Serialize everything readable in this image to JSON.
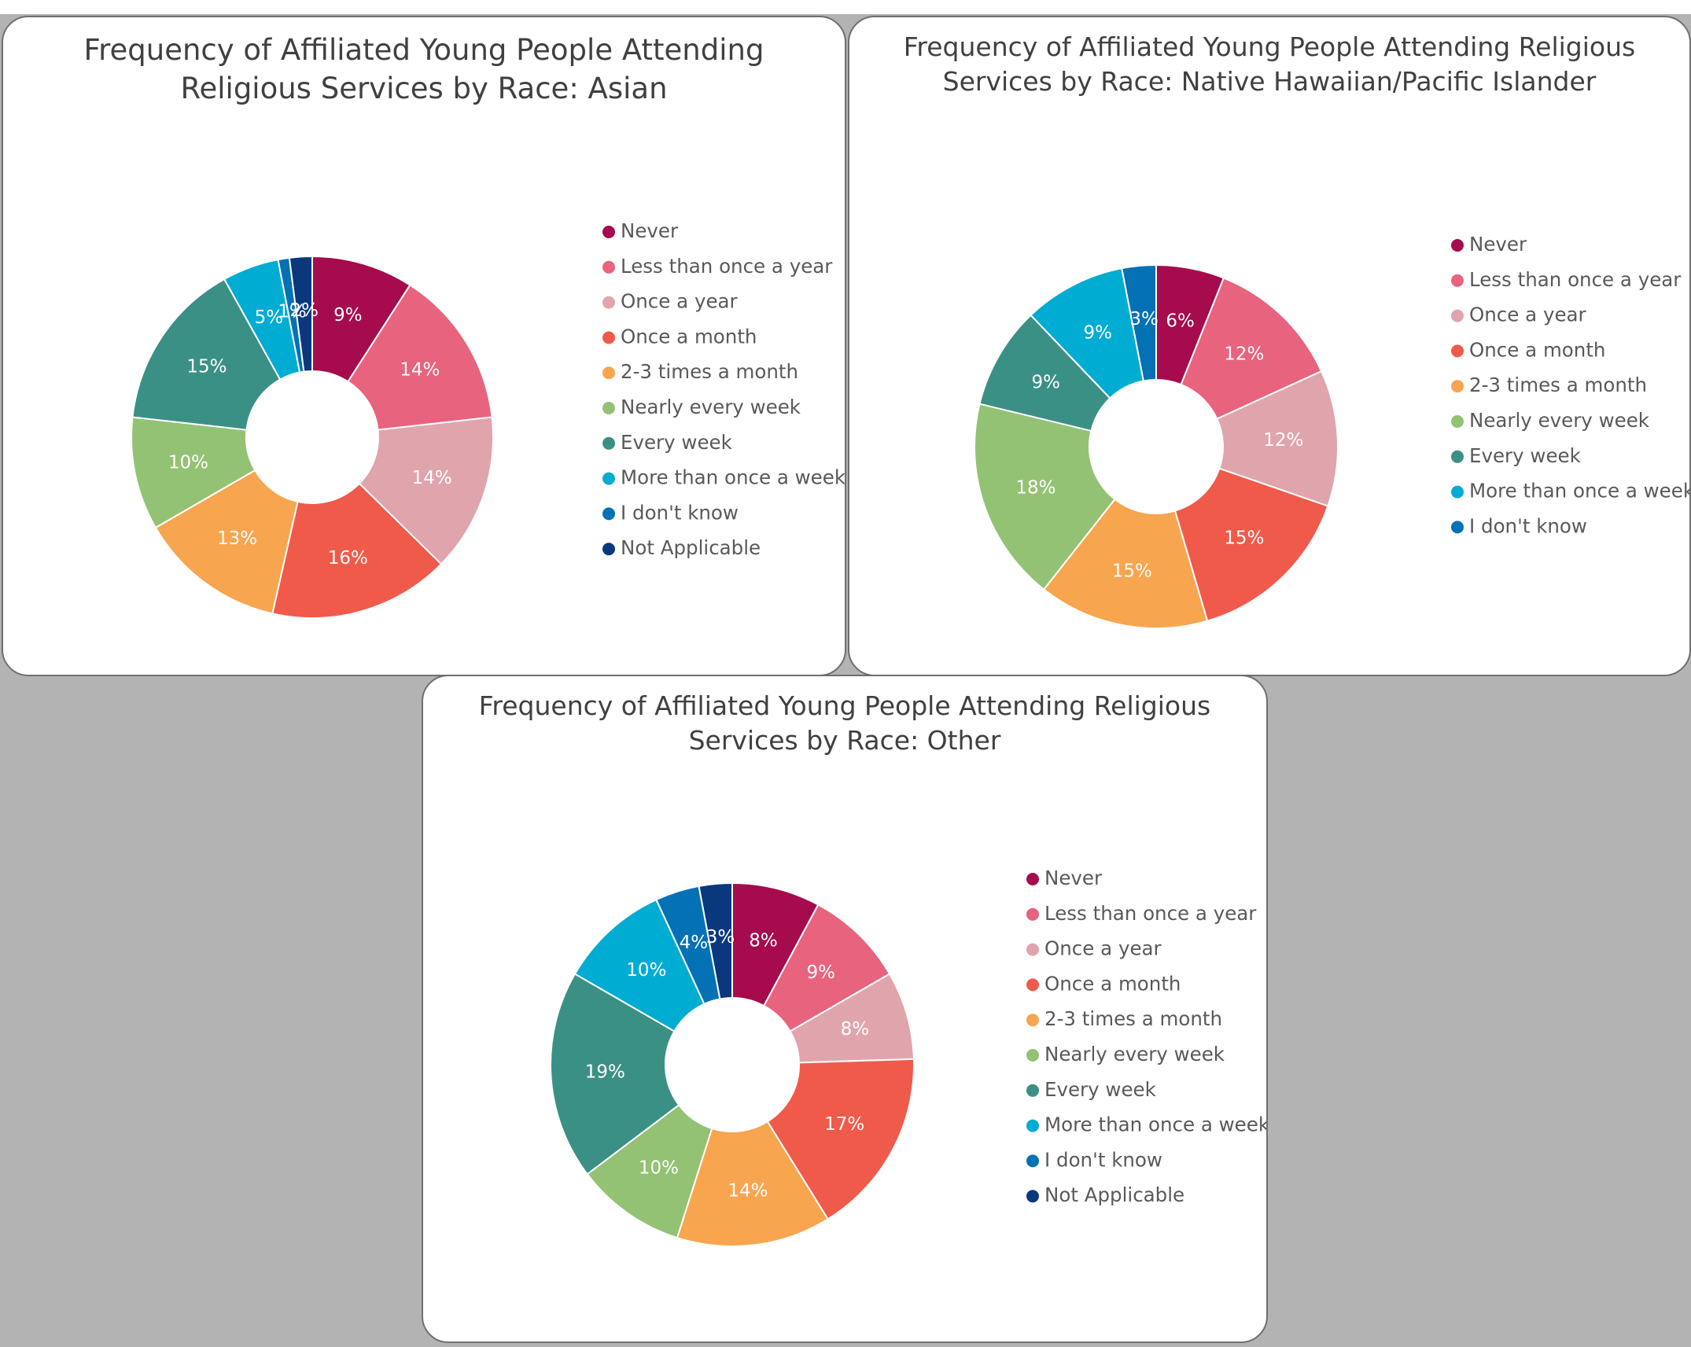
{
  "chart_data": [
    {
      "type": "pie",
      "title": "Frequency of Affiliated Young People Attending Religious Services by Race: Asian",
      "legend_position": "right",
      "categories": [
        "Never",
        "Less than once a year",
        "Once a year",
        "Once a month",
        "2-3 times a month",
        "Nearly every week",
        "Every week",
        "More than once a week",
        "I don't know",
        "Not Applicable"
      ],
      "values": [
        9,
        14,
        14,
        16,
        13,
        10,
        15,
        5,
        1,
        2
      ],
      "labels": [
        "9%",
        "14%",
        "14%",
        "16%",
        "13%",
        "10%",
        "15%",
        "5%",
        "1%",
        "2%"
      ],
      "colors": [
        "#a50b4d",
        "#e8637d",
        "#e0a4ad",
        "#f05a4a",
        "#f8a54f",
        "#94c274",
        "#3b9086",
        "#00acd2",
        "#0471b5",
        "#0a387d"
      ]
    },
    {
      "type": "pie",
      "title": "Frequency of Affiliated Young People Attending Religious Services by Race: Native Hawaiian/Pacific Islander",
      "legend_position": "right",
      "categories": [
        "Never",
        "Less than once a year",
        "Once a year",
        "Once a month",
        "2-3 times a month",
        "Nearly every week",
        "Every week",
        "More than once a week",
        "I don't know"
      ],
      "values": [
        6,
        12,
        12,
        15,
        15,
        18,
        9,
        9,
        3
      ],
      "labels": [
        "6%",
        "12%",
        "12%",
        "15%",
        "15%",
        "18%",
        "9%",
        "9%",
        "3%"
      ],
      "colors": [
        "#a50b4d",
        "#e8637d",
        "#e0a4ad",
        "#f05a4a",
        "#f8a54f",
        "#94c274",
        "#3b9086",
        "#00acd2",
        "#0471b5"
      ]
    },
    {
      "type": "pie",
      "title": "Frequency of Affiliated Young People Attending Religious Services by Race: Other",
      "legend_position": "right",
      "categories": [
        "Never",
        "Less than once a year",
        "Once a year",
        "Once a month",
        "2-3 times a month",
        "Nearly every week",
        "Every week",
        "More than once a week",
        "I don't know",
        "Not Applicable"
      ],
      "values": [
        8,
        9,
        8,
        17,
        14,
        10,
        19,
        10,
        4,
        3
      ],
      "labels": [
        "8%",
        "9%",
        "8%",
        "17%",
        "14%",
        "10%",
        "19%",
        "10%",
        "4%",
        "3%"
      ],
      "colors": [
        "#a50b4d",
        "#e8637d",
        "#e0a4ad",
        "#f05a4a",
        "#f8a54f",
        "#94c274",
        "#3b9086",
        "#00acd2",
        "#0471b5",
        "#0a387d"
      ]
    }
  ]
}
